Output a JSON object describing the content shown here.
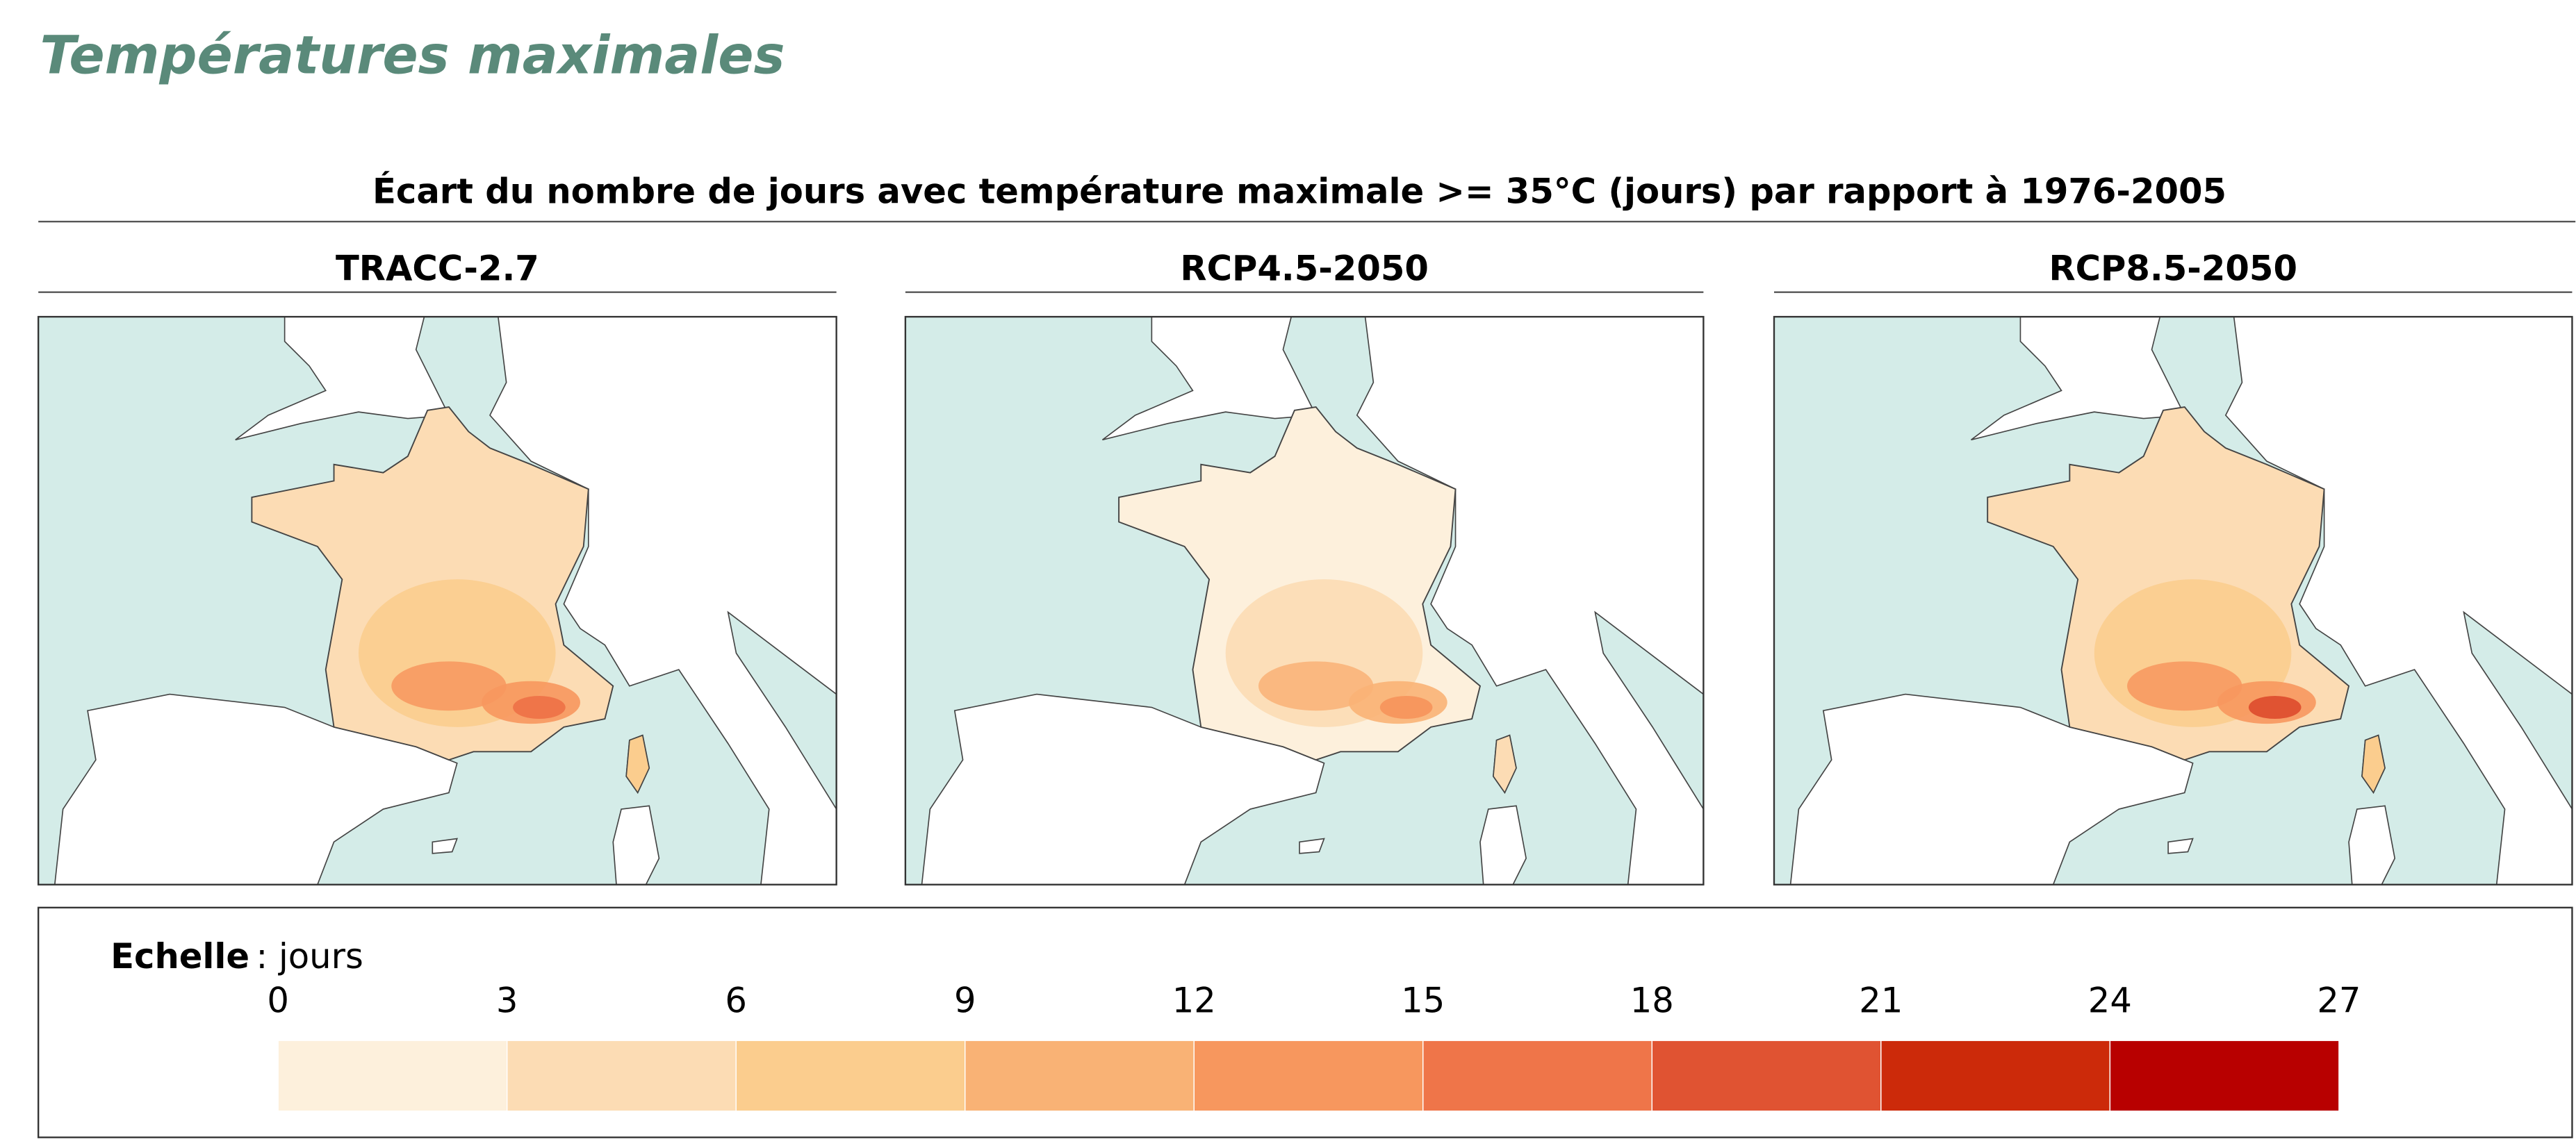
{
  "header": {
    "title": "Températures maximales"
  },
  "figure": {
    "title": "Écart du nombre de jours avec température maximale >= 35°C (jours) par rapport à 1976-2005",
    "panels": [
      {
        "title": "TRACC-2.7"
      },
      {
        "title": "RCP4.5-2050"
      },
      {
        "title": "RCP8.5-2050"
      }
    ]
  },
  "legend": {
    "label": "Echelle",
    "unit": ": jours",
    "ticks": [
      0,
      3,
      6,
      9,
      12,
      15,
      18,
      21,
      24,
      27
    ],
    "colors": [
      "#fdf0dc",
      "#fcdcb4",
      "#fbcd8e",
      "#f9b275",
      "#f7975e",
      "#ef7549",
      "#e05332",
      "#cc2a0a",
      "#b80000"
    ]
  }
}
